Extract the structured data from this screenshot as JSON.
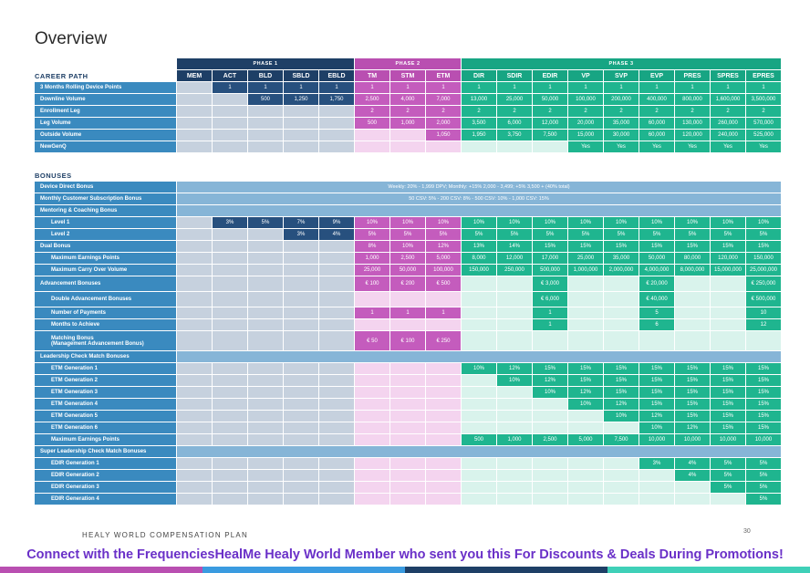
{
  "title": "Overview",
  "phases": [
    "PHASE 1",
    "PHASE 2",
    "PHASE 3"
  ],
  "ranks": [
    "MEM",
    "ACT",
    "BLD",
    "SBLD",
    "EBLD",
    "TM",
    "STM",
    "ETM",
    "DIR",
    "SDIR",
    "EDIR",
    "VP",
    "SVP",
    "EVP",
    "PRES",
    "SPRES",
    "EPRES"
  ],
  "career_heading": "CAREER PATH",
  "bonuses_heading": "BONUSES",
  "career_rows": [
    {
      "label": "3 Months Rolling Device Points",
      "cells": [
        "",
        "1",
        "1",
        "1",
        "1",
        "1",
        "1",
        "1",
        "1",
        "1",
        "1",
        "1",
        "1",
        "1",
        "1",
        "1",
        "1"
      ]
    },
    {
      "label": "Downline Volume",
      "cells": [
        "",
        "",
        "500",
        "1,250",
        "1,750",
        "2,500",
        "4,000",
        "7,000",
        "13,000",
        "25,000",
        "50,000",
        "100,000",
        "200,000",
        "400,000",
        "800,000",
        "1,600,000",
        "3,500,000"
      ]
    },
    {
      "label": "Enrollment Leg",
      "cells": [
        "",
        "",
        "",
        "",
        "",
        "2",
        "2",
        "2",
        "2",
        "2",
        "2",
        "2",
        "2",
        "2",
        "2",
        "2",
        "2"
      ]
    },
    {
      "label": "Leg Volume",
      "cells": [
        "",
        "",
        "",
        "",
        "",
        "500",
        "1,000",
        "2,000",
        "3,500",
        "6,000",
        "12,000",
        "20,000",
        "35,000",
        "60,000",
        "130,000",
        "260,000",
        "570,000"
      ]
    },
    {
      "label": "Outside Volume",
      "cells": [
        "",
        "",
        "",
        "",
        "",
        "",
        "",
        "1,050",
        "1,950",
        "3,750",
        "7,500",
        "15,000",
        "30,000",
        "60,000",
        "120,000",
        "240,000",
        "525,000"
      ]
    },
    {
      "label": "NewGenQ",
      "cells": [
        "",
        "",
        "",
        "",
        "",
        "",
        "",
        "",
        "",
        "",
        "",
        "Yes",
        "Yes",
        "Yes",
        "Yes",
        "Yes",
        "Yes"
      ]
    }
  ],
  "full_rows": {
    "device_direct": {
      "label": "Device Direct Bonus",
      "text": "Weekly: 20% - 1,999 DPV; Monthly: +15% 2,000 - 3,499; +5% 3,500 + (40% total)"
    },
    "customer_sub": {
      "label": "Monthly Customer Subscription Bonus",
      "text": "50 CSV: 5% - 200 CSV: 8% - 500 CSV: 10% - 1,000 CSV: 15%"
    }
  },
  "bonus_rows": [
    {
      "label": "Mentoring & Coaching Bonus",
      "type": "header"
    },
    {
      "label": "Level 1",
      "sub": true,
      "cells": [
        "",
        "3%",
        "5%",
        "7%",
        "9%",
        "10%",
        "10%",
        "10%",
        "10%",
        "10%",
        "10%",
        "10%",
        "10%",
        "10%",
        "10%",
        "10%",
        "10%"
      ]
    },
    {
      "label": "Level 2",
      "sub": true,
      "cells": [
        "",
        "",
        "",
        "3%",
        "4%",
        "5%",
        "5%",
        "5%",
        "5%",
        "5%",
        "5%",
        "5%",
        "5%",
        "5%",
        "5%",
        "5%",
        "5%"
      ]
    },
    {
      "label": "Dual Bonus",
      "cells": [
        "",
        "",
        "",
        "",
        "",
        "8%",
        "10%",
        "12%",
        "13%",
        "14%",
        "15%",
        "15%",
        "15%",
        "15%",
        "15%",
        "15%",
        "15%"
      ]
    },
    {
      "label": "Maximum Earnings Points",
      "sub": true,
      "cells": [
        "",
        "",
        "",
        "",
        "",
        "1,000",
        "2,500",
        "5,000",
        "8,000",
        "12,000",
        "17,000",
        "25,000",
        "35,000",
        "50,000",
        "80,000",
        "120,000",
        "150,000"
      ]
    },
    {
      "label": "Maximum Carry Over Volume",
      "sub": true,
      "cells": [
        "",
        "",
        "",
        "",
        "",
        "25,000",
        "50,000",
        "100,000",
        "150,000",
        "250,000",
        "500,000",
        "1,000,000",
        "2,000,000",
        "4,000,000",
        "8,000,000",
        "15,000,000",
        "25,000,000"
      ]
    },
    {
      "label": "Advancement Bonuses",
      "tall": true,
      "cells": [
        "",
        "",
        "",
        "",
        "",
        "€ 100",
        "€ 200",
        "€ 500",
        "",
        "",
        "€ 3,000",
        "",
        "",
        "€ 20,000",
        "",
        "",
        "€ 250,000"
      ]
    },
    {
      "label": "Double Advancement Bonuses",
      "sub": true,
      "tall": true,
      "cells": [
        "",
        "",
        "",
        "",
        "",
        "",
        "",
        "",
        "",
        "",
        "€ 6,000",
        "",
        "",
        "€ 40,000",
        "",
        "",
        "€ 500,000"
      ]
    },
    {
      "label": "Number of Payments",
      "sub": true,
      "cells": [
        "",
        "",
        "",
        "",
        "",
        "1",
        "1",
        "1",
        "",
        "",
        "1",
        "",
        "",
        "5",
        "",
        "",
        "10"
      ]
    },
    {
      "label": "Months to Achieve",
      "sub": true,
      "cells": [
        "",
        "",
        "",
        "",
        "",
        "",
        "",
        "",
        "",
        "",
        "1",
        "",
        "",
        "6",
        "",
        "",
        "12"
      ]
    },
    {
      "label": "Matching Bonus",
      "label2": "(Management Advancement Bonus)",
      "sub": true,
      "taller": true,
      "cells": [
        "",
        "",
        "",
        "",
        "",
        "€ 50",
        "€ 100",
        "€ 250",
        "",
        "",
        "",
        "",
        "",
        "",
        "",
        "",
        ""
      ]
    },
    {
      "label": "Leadership Check Match Bonuses",
      "type": "header"
    },
    {
      "label": "ETM Generation 1",
      "sub": true,
      "cells": [
        "",
        "",
        "",
        "",
        "",
        "",
        "",
        "",
        "10%",
        "12%",
        "15%",
        "15%",
        "15%",
        "15%",
        "15%",
        "15%",
        "15%"
      ]
    },
    {
      "label": "ETM Generation 2",
      "sub": true,
      "cells": [
        "",
        "",
        "",
        "",
        "",
        "",
        "",
        "",
        "",
        "10%",
        "12%",
        "15%",
        "15%",
        "15%",
        "15%",
        "15%",
        "15%"
      ]
    },
    {
      "label": "ETM Generation 3",
      "sub": true,
      "cells": [
        "",
        "",
        "",
        "",
        "",
        "",
        "",
        "",
        "",
        "",
        "10%",
        "12%",
        "15%",
        "15%",
        "15%",
        "15%",
        "15%"
      ]
    },
    {
      "label": "ETM Generation 4",
      "sub": true,
      "cells": [
        "",
        "",
        "",
        "",
        "",
        "",
        "",
        "",
        "",
        "",
        "",
        "10%",
        "12%",
        "15%",
        "15%",
        "15%",
        "15%"
      ]
    },
    {
      "label": "ETM Generation 5",
      "sub": true,
      "cells": [
        "",
        "",
        "",
        "",
        "",
        "",
        "",
        "",
        "",
        "",
        "",
        "",
        "10%",
        "12%",
        "15%",
        "15%",
        "15%"
      ]
    },
    {
      "label": "ETM Generation 6",
      "sub": true,
      "cells": [
        "",
        "",
        "",
        "",
        "",
        "",
        "",
        "",
        "",
        "",
        "",
        "",
        "",
        "10%",
        "12%",
        "15%",
        "15%"
      ]
    },
    {
      "label": "Maximum Earnings Points",
      "sub": true,
      "cells": [
        "",
        "",
        "",
        "",
        "",
        "",
        "",
        "",
        "500",
        "1,000",
        "2,500",
        "5,000",
        "7,500",
        "10,000",
        "10,000",
        "10,000",
        "10,000"
      ]
    },
    {
      "label": "Super Leadership Check Match Bonuses",
      "type": "header"
    },
    {
      "label": "EDIR Generation 1",
      "sub": true,
      "cells": [
        "",
        "",
        "",
        "",
        "",
        "",
        "",
        "",
        "",
        "",
        "",
        "",
        "",
        "3%",
        "4%",
        "5%",
        "5%"
      ]
    },
    {
      "label": "EDIR Generation 2",
      "sub": true,
      "cells": [
        "",
        "",
        "",
        "",
        "",
        "",
        "",
        "",
        "",
        "",
        "",
        "",
        "",
        "",
        "4%",
        "5%",
        "5%"
      ]
    },
    {
      "label": "EDIR Generation 3",
      "sub": true,
      "cells": [
        "",
        "",
        "",
        "",
        "",
        "",
        "",
        "",
        "",
        "",
        "",
        "",
        "",
        "",
        "",
        "5%",
        "5%"
      ]
    },
    {
      "label": "EDIR Generation 4",
      "sub": true,
      "cells": [
        "",
        "",
        "",
        "",
        "",
        "",
        "",
        "",
        "",
        "",
        "",
        "",
        "",
        "",
        "",
        "",
        "5%"
      ]
    }
  ],
  "footer": {
    "left": "HEALY WORLD COMPENSATION PLAN",
    "page": "30"
  },
  "promo": "Connect with the FrequenciesHealMe Healy World Member who sent you this For Discounts & Deals During Promotions!",
  "colors": {
    "phase1": "#1e3f66",
    "phase2": "#b94fb1",
    "phase3": "#17a583",
    "label": "#3a8abf",
    "promo": "#6a30c8"
  }
}
